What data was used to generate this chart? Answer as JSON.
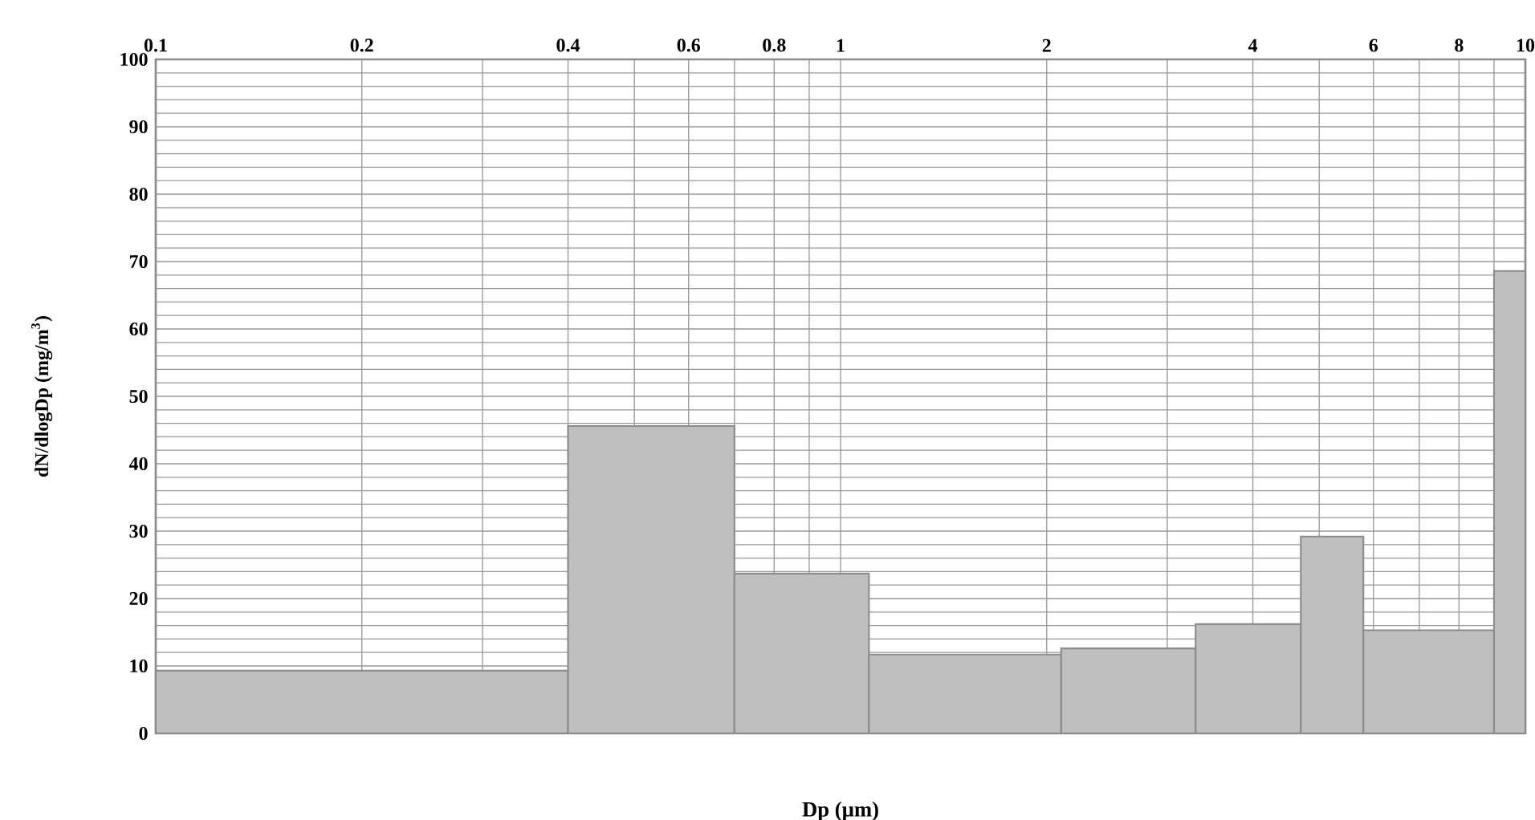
{
  "chart_data": {
    "type": "histogram",
    "xlabel": "Dp (µm)",
    "ylabel": "dN/dlogDp (mg/m$^{3}$)",
    "bins": [
      0.1,
      0.4,
      0.7,
      1.1,
      2.1,
      3.3,
      4.7,
      5.8,
      9.0,
      10
    ],
    "values": [
      9.3,
      45.6,
      23.7,
      11.7,
      12.6,
      16.2,
      29.2,
      15.3,
      68.6
    ],
    "color": "#bfbfbf",
    "log": "x",
    "grid": true,
    "xlim": [
      0.1,
      10
    ],
    "ylim": [
      0,
      100
    ],
    "xticks": [
      0.1,
      0.2,
      {
        "value": 0.3,
        "label": null
      },
      0.4,
      {
        "value": 0.5,
        "label": null
      },
      0.6,
      {
        "value": 0.7,
        "label": null
      },
      0.8,
      {
        "value": 0.9,
        "label": null
      },
      1,
      2,
      {
        "value": 3,
        "label": null
      },
      4,
      {
        "value": 5,
        "label": null
      },
      6,
      {
        "value": 7,
        "label": null
      },
      8,
      {
        "value": 9,
        "label": null
      },
      10
    ],
    "yticks": [
      0,
      {
        "value": 2,
        "label": null
      },
      {
        "value": 4,
        "label": null
      },
      {
        "value": 6,
        "label": null
      },
      {
        "value": 8,
        "label": null
      },
      10,
      {
        "value": 12,
        "label": null
      },
      {
        "value": 14,
        "label": null
      },
      {
        "value": 16,
        "label": null
      },
      {
        "value": 18,
        "label": null
      },
      20,
      {
        "value": 22,
        "label": null
      },
      {
        "value": 24,
        "label": null
      },
      {
        "value": 26,
        "label": null
      },
      {
        "value": 28,
        "label": null
      },
      30,
      {
        "value": 32,
        "label": null
      },
      {
        "value": 34,
        "label": null
      },
      {
        "value": 36,
        "label": null
      },
      {
        "value": 38,
        "label": null
      },
      40,
      {
        "value": 42,
        "label": null
      },
      {
        "value": 44,
        "label": null
      },
      {
        "value": 46,
        "label": null
      },
      {
        "value": 48,
        "label": null
      },
      50,
      {
        "value": 52,
        "label": null
      },
      {
        "value": 54,
        "label": null
      },
      {
        "value": 56,
        "label": null
      },
      {
        "value": 58,
        "label": null
      },
      60,
      {
        "value": 62,
        "label": null
      },
      {
        "value": 64,
        "label": null
      },
      {
        "value": 66,
        "label": null
      },
      {
        "value": 68,
        "label": null
      },
      70,
      {
        "value": 72,
        "label": null
      },
      {
        "value": 74,
        "label": null
      },
      {
        "value": 76,
        "label": null
      },
      {
        "value": 78,
        "label": null
      },
      80,
      {
        "value": 82,
        "label": null
      },
      {
        "value": 84,
        "label": null
      },
      {
        "value": 86,
        "label": null
      },
      {
        "value": 88,
        "label": null
      },
      90,
      {
        "value": 92,
        "label": null
      },
      {
        "value": 94,
        "label": null
      },
      {
        "value": 96,
        "label": null
      },
      {
        "value": 98,
        "label": null
      },
      100
    ]
  }
}
